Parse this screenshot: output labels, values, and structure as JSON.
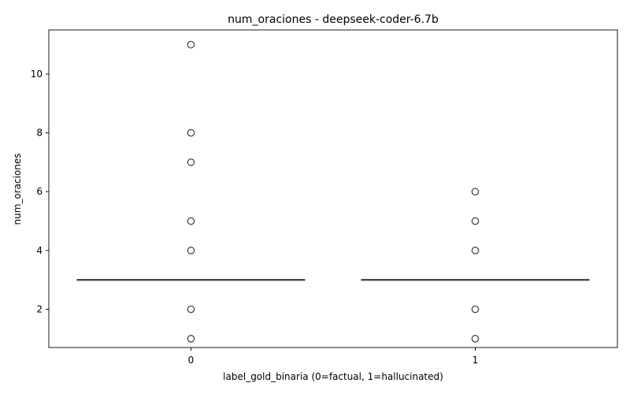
{
  "chart_data": {
    "type": "box",
    "title": "num_oraciones - deepseek-coder-6.7b",
    "xlabel": "label_gold_binaria (0=factual, 1=hallucinated)",
    "ylabel": "num_oraciones",
    "categories": [
      "0",
      "1"
    ],
    "ylim": [
      0.7,
      11.5
    ],
    "yticks": [
      2,
      4,
      6,
      8,
      10
    ],
    "grid": false,
    "boxes": [
      {
        "category": "0",
        "q1": 3,
        "median": 3,
        "q3": 3,
        "whisker_low": 3,
        "whisker_high": 3,
        "outliers": [
          1,
          2,
          4,
          5,
          7,
          8,
          11
        ]
      },
      {
        "category": "1",
        "q1": 3,
        "median": 3,
        "q3": 3,
        "whisker_low": 3,
        "whisker_high": 3,
        "outliers": [
          1,
          2,
          4,
          5,
          6
        ]
      }
    ],
    "colors": {
      "line": "#3d3d3d",
      "box_fill": "#3f75b0",
      "outlier": "#3d3d3d"
    }
  }
}
